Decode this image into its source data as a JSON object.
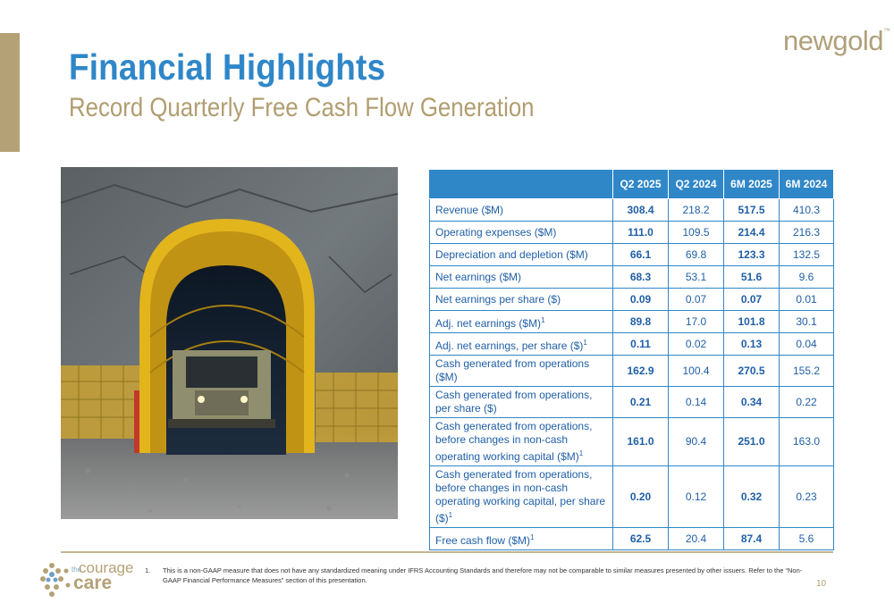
{
  "header": {
    "title": "Financial Highlights",
    "subtitle": "Record Quarterly Free Cash Flow Generation"
  },
  "brand": {
    "logo_text": "newgold",
    "trademark": "™",
    "accent_color": "#b5a176",
    "title_color": "#2f87c8"
  },
  "photo": {
    "icon": "mine-tunnel-haul-truck-photo"
  },
  "table": {
    "headers": [
      "",
      "Q2 2025",
      "Q2 2024",
      "6M 2025",
      "6M 2024"
    ],
    "rows": [
      {
        "label": "Revenue ($M)",
        "sup": "",
        "values": [
          "308.4",
          "218.2",
          "517.5",
          "410.3"
        ]
      },
      {
        "label": "Operating expenses ($M)",
        "sup": "",
        "values": [
          "111.0",
          "109.5",
          "214.4",
          "216.3"
        ]
      },
      {
        "label": "Depreciation and depletion ($M)",
        "sup": "",
        "values": [
          "66.1",
          "69.8",
          "123.3",
          "132.5"
        ]
      },
      {
        "label": "Net earnings ($M)",
        "sup": "",
        "values": [
          "68.3",
          "53.1",
          "51.6",
          "9.6"
        ]
      },
      {
        "label": "Net earnings per share ($)",
        "sup": "",
        "values": [
          "0.09",
          "0.07",
          "0.07",
          "0.01"
        ]
      },
      {
        "label": "Adj. net earnings ($M)",
        "sup": "1",
        "values": [
          "89.8",
          "17.0",
          "101.8",
          "30.1"
        ]
      },
      {
        "label": "Adj. net earnings, per share ($)",
        "sup": "1",
        "values": [
          "0.11",
          "0.02",
          "0.13",
          "0.04"
        ]
      },
      {
        "label": "Cash generated from operations ($M)",
        "sup": "",
        "values": [
          "162.9",
          "100.4",
          "270.5",
          "155.2"
        ]
      },
      {
        "label": "Cash generated from operations, per share ($)",
        "sup": "",
        "values": [
          "0.21",
          "0.14",
          "0.34",
          "0.22"
        ]
      },
      {
        "label": "Cash generated from operations, before changes in non-cash operating working capital ($M)",
        "sup": "1",
        "values": [
          "161.0",
          "90.4",
          "251.0",
          "163.0"
        ]
      },
      {
        "label": "Cash generated from operations, before changes in non-cash operating working capital, per share ($)",
        "sup": "1",
        "values": [
          "0.20",
          "0.12",
          "0.32",
          "0.23"
        ]
      },
      {
        "label": "Free cash flow ($M)",
        "sup": "1",
        "values": [
          "62.5",
          "20.4",
          "87.4",
          "5.6"
        ]
      }
    ]
  },
  "footer": {
    "footnote_number": "1.",
    "footnote_text": "This is a non-GAAP measure that does not have any standardized meaning under IFRS Accounting Standards and therefore may not be comparable to similar measures presented by other issuers. Refer to the “Non-GAAP Financial Performance Measures” section of this presentation.",
    "page_number": "10",
    "campaign_the": "the",
    "campaign_courage": "courage",
    "campaign_care": "care"
  }
}
